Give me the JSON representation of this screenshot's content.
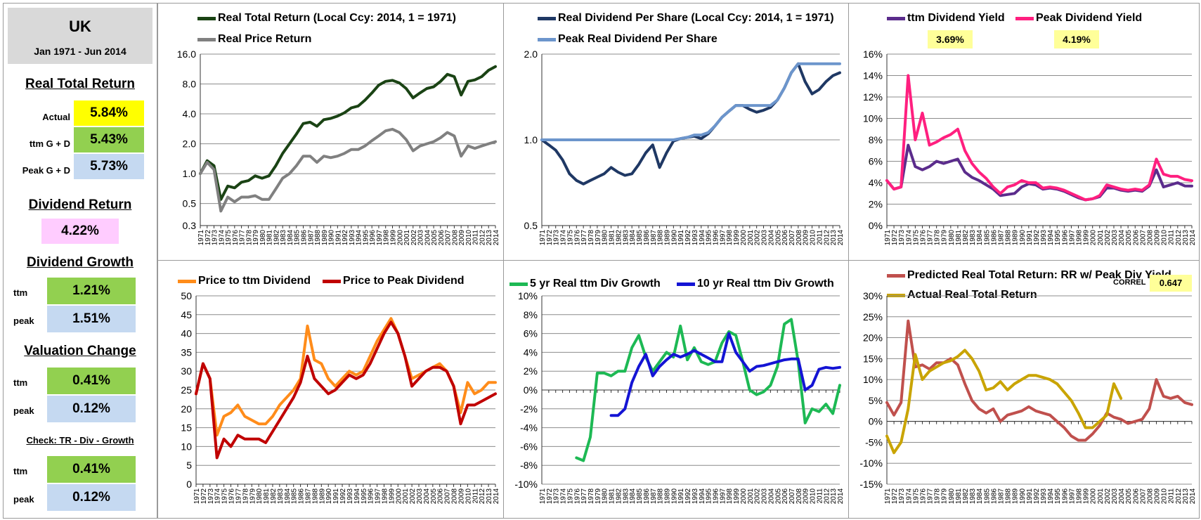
{
  "summary": {
    "country": "UK",
    "period": "Jan 1971 - Jun 2014",
    "rtr_title": "Real Total Return",
    "actual_label": "Actual",
    "actual_value": "5.84%",
    "ttm_gd_label": "ttm  G + D",
    "ttm_gd_value": "5.43%",
    "peak_gd_label": "Peak  G + D",
    "peak_gd_value": "5.73%",
    "divret_title": "Dividend Return",
    "divret_value": "4.22%",
    "divgrowth_title": "Dividend Growth",
    "dg_ttm_label": "ttm",
    "dg_ttm_value": "1.21%",
    "dg_peak_label": "peak",
    "dg_peak_value": "1.51%",
    "val_title": "Valuation Change",
    "vc_ttm_label": "ttm",
    "vc_ttm_value": "0.41%",
    "vc_peak_label": "peak",
    "vc_peak_value": "0.12%",
    "check_title": "Check: TR - Div - Growth",
    "ck_ttm_label": "ttm",
    "ck_ttm_value": "0.41%",
    "ck_peak_label": "peak",
    "ck_peak_value": "0.12%",
    "colors": {
      "yellow": "#ffff00",
      "green": "#92d050",
      "blue": "#c5d9f1",
      "pink": "#ffccff",
      "header": "#d9d9d9"
    }
  },
  "chart_data": [
    {
      "id": "c1",
      "type": "line",
      "yscale": "log",
      "ylim": [
        0.3,
        16
      ],
      "yticks": [
        0.3,
        0.5,
        1.0,
        2.0,
        4.0,
        8.0,
        16.0
      ],
      "ytick_labels": [
        "0.3",
        "0.5",
        "1.0",
        "2.0",
        "4.0",
        "8.0",
        "16.0"
      ],
      "x": [
        1971,
        1972,
        1973,
        1974,
        1975,
        1976,
        1977,
        1978,
        1979,
        1980,
        1981,
        1982,
        1983,
        1984,
        1985,
        1986,
        1987,
        1988,
        1989,
        1990,
        1991,
        1992,
        1993,
        1994,
        1995,
        1996,
        1997,
        1998,
        1999,
        2000,
        2001,
        2002,
        2003,
        2004,
        2005,
        2006,
        2007,
        2008,
        2009,
        2010,
        2011,
        2012,
        2013,
        2014
      ],
      "series": [
        {
          "name": "Real Total Return (Local Ccy: 2014, 1 = 1971)",
          "color": "#1a4314",
          "values": [
            1.0,
            1.35,
            1.2,
            0.55,
            0.75,
            0.72,
            0.82,
            0.85,
            0.95,
            0.9,
            0.95,
            1.2,
            1.6,
            2.0,
            2.5,
            3.2,
            3.3,
            3.0,
            3.5,
            3.6,
            3.8,
            4.1,
            4.6,
            4.8,
            5.5,
            6.5,
            7.8,
            8.5,
            8.7,
            8.2,
            7.2,
            5.8,
            6.5,
            7.2,
            7.5,
            8.5,
            10.0,
            9.5,
            6.2,
            8.5,
            8.8,
            9.5,
            11.0,
            12.0
          ]
        },
        {
          "name": "Real Price Return",
          "color": "#808080",
          "values": [
            1.0,
            1.3,
            1.1,
            0.42,
            0.58,
            0.52,
            0.58,
            0.58,
            0.6,
            0.55,
            0.55,
            0.7,
            0.9,
            1.0,
            1.2,
            1.5,
            1.5,
            1.3,
            1.5,
            1.45,
            1.5,
            1.6,
            1.75,
            1.75,
            1.9,
            2.15,
            2.4,
            2.7,
            2.8,
            2.6,
            2.2,
            1.7,
            1.9,
            2.0,
            2.1,
            2.3,
            2.6,
            2.4,
            1.5,
            1.9,
            1.8,
            1.9,
            2.0,
            2.1
          ]
        }
      ]
    },
    {
      "id": "c2",
      "type": "line",
      "yscale": "log",
      "ylim": [
        0.5,
        2.0
      ],
      "yticks": [
        0.5,
        1.0,
        2.0
      ],
      "ytick_labels": [
        "0.5",
        "1.0",
        "2.0"
      ],
      "x": [
        1971,
        1972,
        1973,
        1974,
        1975,
        1976,
        1977,
        1978,
        1979,
        1980,
        1981,
        1982,
        1983,
        1984,
        1985,
        1986,
        1987,
        1988,
        1989,
        1990,
        1991,
        1992,
        1993,
        1994,
        1995,
        1996,
        1997,
        1998,
        1999,
        2000,
        2001,
        2002,
        2003,
        2004,
        2005,
        2006,
        2007,
        2008,
        2009,
        2010,
        2011,
        2012,
        2013,
        2014
      ],
      "series": [
        {
          "name": "Real Dividend Per Share (Local Ccy: 2014, 1 = 1971)",
          "color": "#1f3864",
          "values": [
            1.0,
            0.96,
            0.92,
            0.85,
            0.76,
            0.72,
            0.7,
            0.72,
            0.74,
            0.76,
            0.8,
            0.77,
            0.75,
            0.76,
            0.82,
            0.9,
            0.96,
            0.8,
            0.9,
            0.99,
            1.01,
            1.02,
            1.03,
            1.01,
            1.05,
            1.12,
            1.2,
            1.26,
            1.32,
            1.32,
            1.28,
            1.25,
            1.27,
            1.3,
            1.38,
            1.52,
            1.72,
            1.85,
            1.6,
            1.45,
            1.5,
            1.6,
            1.68,
            1.72
          ]
        },
        {
          "name": "Peak Real Dividend Per Share",
          "color": "#6c95cc",
          "values": [
            1.0,
            1.0,
            1.0,
            1.0,
            1.0,
            1.0,
            1.0,
            1.0,
            1.0,
            1.0,
            1.0,
            1.0,
            1.0,
            1.0,
            1.0,
            1.0,
            1.0,
            1.0,
            1.0,
            1.0,
            1.01,
            1.02,
            1.04,
            1.04,
            1.06,
            1.12,
            1.2,
            1.26,
            1.32,
            1.32,
            1.32,
            1.32,
            1.32,
            1.32,
            1.38,
            1.52,
            1.72,
            1.85,
            1.85,
            1.85,
            1.85,
            1.85,
            1.85,
            1.85
          ]
        }
      ]
    },
    {
      "id": "c3",
      "type": "line",
      "yscale": "linear",
      "ylim": [
        0,
        16
      ],
      "yticks": [
        0,
        2,
        4,
        6,
        8,
        10,
        12,
        14,
        16
      ],
      "ytick_labels": [
        "0%",
        "2%",
        "4%",
        "6%",
        "8%",
        "10%",
        "12%",
        "14%",
        "16%"
      ],
      "x": [
        1971,
        1972,
        1973,
        1974,
        1975,
        1976,
        1977,
        1978,
        1979,
        1980,
        1981,
        1982,
        1983,
        1984,
        1985,
        1986,
        1987,
        1988,
        1989,
        1990,
        1991,
        1992,
        1993,
        1994,
        1995,
        1996,
        1997,
        1998,
        1999,
        2000,
        2001,
        2002,
        2003,
        2004,
        2005,
        2006,
        2007,
        2008,
        2009,
        2010,
        2011,
        2012,
        2013,
        2014
      ],
      "series": [
        {
          "name": "ttm Dividend Yield",
          "color": "#5b2c8c",
          "values": [
            4.2,
            3.4,
            3.6,
            7.5,
            5.5,
            5.2,
            5.5,
            6.0,
            5.8,
            6.0,
            6.2,
            5.0,
            4.5,
            4.2,
            3.8,
            3.4,
            2.8,
            2.9,
            3.0,
            3.6,
            3.9,
            3.8,
            3.4,
            3.5,
            3.4,
            3.2,
            2.9,
            2.6,
            2.4,
            2.5,
            2.7,
            3.5,
            3.5,
            3.3,
            3.2,
            3.3,
            3.2,
            3.7,
            5.2,
            3.6,
            3.8,
            4.0,
            3.7,
            3.69
          ]
        },
        {
          "name": "Peak Dividend Yield",
          "color": "#ff1f7f",
          "values": [
            4.2,
            3.4,
            3.6,
            14.0,
            8.0,
            10.5,
            7.5,
            7.8,
            8.2,
            8.5,
            9.0,
            7.0,
            5.8,
            5.0,
            4.4,
            3.6,
            3.0,
            3.6,
            3.8,
            4.2,
            4.0,
            4.0,
            3.5,
            3.6,
            3.5,
            3.3,
            3.0,
            2.7,
            2.4,
            2.5,
            2.8,
            3.8,
            3.6,
            3.4,
            3.3,
            3.4,
            3.3,
            3.8,
            6.2,
            4.8,
            4.6,
            4.6,
            4.3,
            4.19
          ]
        }
      ],
      "labels": [
        "3.69%",
        "4.19%"
      ]
    },
    {
      "id": "c4",
      "type": "line",
      "yscale": "linear",
      "ylim": [
        0,
        50
      ],
      "yticks": [
        0,
        5,
        10,
        15,
        20,
        25,
        30,
        35,
        40,
        45,
        50
      ],
      "ytick_labels": [
        "0",
        "5",
        "10",
        "15",
        "20",
        "25",
        "30",
        "35",
        "40",
        "45",
        "50"
      ],
      "x": [
        1971,
        1972,
        1973,
        1974,
        1975,
        1976,
        1977,
        1978,
        1979,
        1980,
        1981,
        1982,
        1983,
        1984,
        1985,
        1986,
        1987,
        1988,
        1989,
        1990,
        1991,
        1992,
        1993,
        1994,
        1995,
        1996,
        1997,
        1998,
        1999,
        2000,
        2001,
        2002,
        2003,
        2004,
        2005,
        2006,
        2007,
        2008,
        2009,
        2010,
        2011,
        2012,
        2013,
        2014
      ],
      "series": [
        {
          "name": "Price to ttm Dividend",
          "color": "#ff8c1a",
          "values": [
            24,
            32,
            28,
            13,
            18,
            19,
            21,
            18,
            17,
            16,
            16,
            18,
            21,
            23,
            25,
            28,
            42,
            33,
            32,
            28,
            26,
            28,
            30,
            29,
            30,
            34,
            38,
            41,
            44,
            40,
            34,
            28,
            29,
            30,
            31,
            32,
            30,
            26,
            19,
            27,
            24,
            25,
            27,
            27
          ]
        },
        {
          "name": "Price to Peak Dividend",
          "color": "#c00000",
          "values": [
            24,
            32,
            28,
            7,
            12,
            10,
            13,
            12,
            12,
            12,
            11,
            14,
            17,
            20,
            23,
            27,
            34,
            28,
            26,
            24,
            25,
            27,
            29,
            28,
            29,
            32,
            36,
            40,
            43,
            40,
            34,
            26,
            28,
            30,
            31,
            31,
            30,
            26,
            16,
            21,
            21,
            22,
            23,
            24
          ]
        }
      ]
    },
    {
      "id": "c5",
      "type": "line",
      "yscale": "linear",
      "ylim": [
        -10,
        10
      ],
      "yticks": [
        -10,
        -8,
        -6,
        -4,
        -2,
        0,
        2,
        4,
        6,
        8,
        10
      ],
      "ytick_labels": [
        "-10%",
        "-8%",
        "-6%",
        "-4%",
        "-2%",
        "0%",
        "2%",
        "4%",
        "6%",
        "8%",
        "10%"
      ],
      "x": [
        1971,
        1972,
        1973,
        1974,
        1975,
        1976,
        1977,
        1978,
        1979,
        1980,
        1981,
        1982,
        1983,
        1984,
        1985,
        1986,
        1987,
        1988,
        1989,
        1990,
        1991,
        1992,
        1993,
        1994,
        1995,
        1996,
        1997,
        1998,
        1999,
        2000,
        2001,
        2002,
        2003,
        2004,
        2005,
        2006,
        2007,
        2008,
        2009,
        2010,
        2011,
        2012,
        2013,
        2014
      ],
      "series": [
        {
          "name": "5 yr Real ttm Div Growth",
          "color": "#1db954",
          "values": [
            null,
            null,
            null,
            null,
            null,
            -7.2,
            -7.5,
            -5.0,
            1.8,
            1.8,
            1.5,
            2.0,
            2.0,
            4.5,
            5.8,
            3.5,
            2.0,
            3.0,
            4.0,
            3.5,
            6.8,
            3.2,
            4.5,
            3.0,
            2.7,
            3.0,
            5.0,
            6.2,
            5.8,
            3.0,
            0.0,
            -0.5,
            -0.2,
            0.5,
            2.5,
            7.0,
            7.5,
            3.0,
            -3.5,
            -2.0,
            -2.3,
            -1.5,
            -2.5,
            0.5
          ]
        },
        {
          "name": "10 yr Real ttm Div Growth",
          "color": "#1414d4",
          "values": [
            null,
            null,
            null,
            null,
            null,
            null,
            null,
            null,
            null,
            null,
            -2.7,
            -2.7,
            -2.0,
            0.8,
            2.5,
            3.8,
            1.5,
            2.5,
            3.2,
            3.8,
            3.5,
            3.8,
            4.2,
            3.8,
            3.4,
            3.0,
            3.0,
            6.0,
            4.0,
            3.0,
            2.0,
            2.5,
            2.6,
            2.8,
            3.0,
            3.2,
            3.3,
            3.3,
            0.0,
            0.5,
            2.2,
            2.4,
            2.3,
            2.4
          ]
        }
      ]
    },
    {
      "id": "c6",
      "type": "line",
      "yscale": "linear",
      "ylim": [
        -15,
        30
      ],
      "yticks": [
        -15,
        -10,
        -5,
        0,
        5,
        10,
        15,
        20,
        25,
        30
      ],
      "ytick_labels": [
        "-15%",
        "-10%",
        "-5%",
        "0%",
        "5%",
        "10%",
        "15%",
        "20%",
        "25%",
        "30%"
      ],
      "x": [
        1971,
        1972,
        1973,
        1974,
        1975,
        1976,
        1977,
        1978,
        1979,
        1980,
        1981,
        1982,
        1983,
        1984,
        1985,
        1986,
        1987,
        1988,
        1989,
        1990,
        1991,
        1992,
        1993,
        1994,
        1995,
        1996,
        1997,
        1998,
        1999,
        2000,
        2001,
        2002,
        2003,
        2004,
        2005,
        2006,
        2007,
        2008,
        2009,
        2010,
        2011,
        2012,
        2013,
        2014
      ],
      "series": [
        {
          "name": "Predicted Real Total Return: RR w/ Peak Div Yield",
          "color": "#c0504d",
          "values": [
            4.5,
            1.5,
            4.5,
            24.0,
            13.0,
            13.5,
            12.5,
            14.0,
            14.0,
            15.0,
            13.5,
            9.0,
            5.0,
            3.0,
            2.0,
            3.0,
            0.0,
            1.5,
            2.0,
            2.5,
            3.5,
            2.5,
            2.0,
            1.5,
            0.0,
            -1.5,
            -3.5,
            -4.5,
            -4.5,
            -3.0,
            -1.0,
            2.0,
            1.0,
            0.5,
            -0.5,
            0.0,
            0.5,
            3.0,
            10.0,
            6.0,
            5.5,
            6.0,
            4.5,
            4.0
          ]
        },
        {
          "name": "Actual Real Total Return",
          "color": "#c9a400",
          "values": [
            -3.5,
            -7.5,
            -5.0,
            3.0,
            16.0,
            10.0,
            12.0,
            13.0,
            14.0,
            14.5,
            15.5,
            17.0,
            15.0,
            12.0,
            7.5,
            8.0,
            9.5,
            7.5,
            9.0,
            10.0,
            11.0,
            11.0,
            10.5,
            10.0,
            9.0,
            7.0,
            5.0,
            2.0,
            -1.5,
            -1.5,
            0.0,
            1.5,
            9.0,
            5.5,
            null,
            null,
            null,
            null,
            null,
            null,
            null,
            null,
            null,
            null
          ]
        }
      ],
      "annotation_label": "CORREL",
      "annotation_value": "0.647"
    }
  ]
}
